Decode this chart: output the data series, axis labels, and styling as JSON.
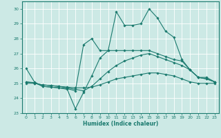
{
  "xlabel": "Humidex (Indice chaleur)",
  "bg_color": "#cce9e5",
  "grid_color": "#ffffff",
  "line_color": "#1a7a6e",
  "xlim": [
    -0.5,
    23.5
  ],
  "ylim": [
    23.0,
    30.5
  ],
  "yticks": [
    23,
    24,
    25,
    26,
    27,
    28,
    29,
    30
  ],
  "xticks": [
    0,
    1,
    2,
    3,
    4,
    5,
    6,
    7,
    8,
    9,
    10,
    11,
    12,
    13,
    14,
    15,
    16,
    17,
    18,
    19,
    20,
    21,
    22,
    23
  ],
  "series": [
    {
      "x": [
        0,
        1,
        2,
        3,
        4,
        5,
        6,
        7,
        8,
        9,
        10,
        11,
        12,
        13,
        14,
        15,
        16,
        17,
        18,
        19,
        20,
        21,
        22,
        23
      ],
      "y": [
        26.0,
        25.1,
        24.8,
        24.75,
        24.7,
        24.6,
        23.3,
        24.4,
        25.5,
        26.7,
        27.2,
        29.8,
        28.9,
        28.9,
        29.0,
        30.0,
        29.4,
        28.5,
        28.1,
        26.6,
        25.9,
        25.4,
        25.4,
        25.1
      ]
    },
    {
      "x": [
        0,
        1,
        2,
        3,
        4,
        5,
        6,
        7,
        8,
        9,
        10,
        11,
        12,
        13,
        14,
        15,
        16,
        17,
        18,
        19,
        20,
        21,
        22,
        23
      ],
      "y": [
        25.1,
        25.05,
        24.8,
        24.75,
        24.7,
        24.65,
        24.5,
        27.6,
        28.0,
        27.2,
        27.2,
        27.2,
        27.2,
        27.2,
        27.2,
        27.2,
        27.0,
        26.8,
        26.6,
        26.5,
        25.9,
        25.4,
        25.3,
        25.1
      ]
    },
    {
      "x": [
        0,
        1,
        2,
        3,
        4,
        5,
        6,
        7,
        8,
        9,
        10,
        11,
        12,
        13,
        14,
        15,
        16,
        17,
        18,
        19,
        20,
        21,
        22,
        23
      ],
      "y": [
        25.1,
        25.0,
        24.9,
        24.85,
        24.8,
        24.7,
        24.6,
        24.5,
        24.8,
        25.3,
        25.8,
        26.2,
        26.5,
        26.7,
        26.9,
        27.0,
        26.8,
        26.6,
        26.4,
        26.2,
        25.9,
        25.4,
        25.3,
        25.1
      ]
    },
    {
      "x": [
        0,
        1,
        2,
        3,
        4,
        5,
        6,
        7,
        8,
        9,
        10,
        11,
        12,
        13,
        14,
        15,
        16,
        17,
        18,
        19,
        20,
        21,
        22,
        23
      ],
      "y": [
        25.0,
        25.0,
        24.9,
        24.85,
        24.8,
        24.75,
        24.7,
        24.7,
        24.75,
        24.9,
        25.1,
        25.3,
        25.4,
        25.5,
        25.6,
        25.7,
        25.7,
        25.6,
        25.5,
        25.3,
        25.1,
        25.0,
        25.0,
        25.0
      ]
    }
  ]
}
